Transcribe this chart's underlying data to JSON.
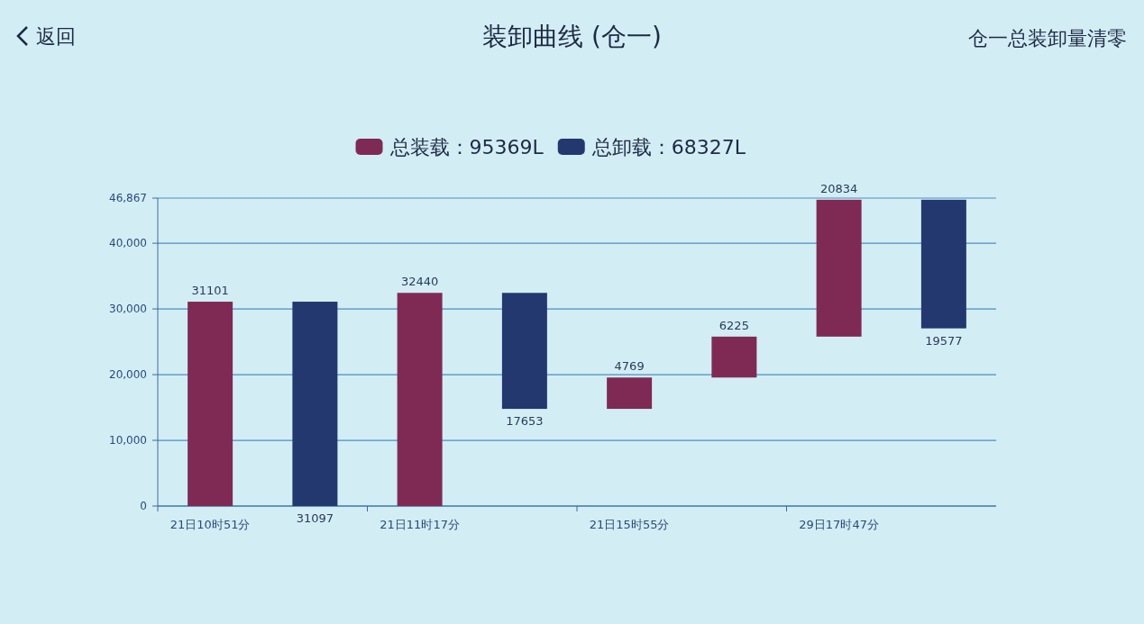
{
  "chart_data": {
    "type": "bar",
    "title": "装卸曲线 (仓一)",
    "annotations": [
      "返回",
      "仓一总装卸量清零"
    ],
    "categories": [
      "21日10时51分",
      null,
      "21日11时17分",
      null,
      "21日15时55分",
      null,
      "29日17时47分",
      null
    ],
    "series": [
      {
        "name": "总装载：95369L",
        "color": "#7e2a55",
        "values": [
          31101,
          null,
          32440,
          null,
          4769,
          6225,
          20834,
          null
        ],
        "base": [
          0,
          null,
          4,
          null,
          14791,
          19560,
          25785,
          null
        ]
      },
      {
        "name": "总卸载：68327L",
        "color": "#22386f",
        "values": [
          null,
          31097,
          null,
          17653,
          null,
          null,
          null,
          19577
        ],
        "base": [
          null,
          4,
          null,
          14791,
          null,
          null,
          null,
          27042
        ]
      }
    ],
    "ylim": [
      0,
      46867
    ],
    "yticks": [
      0,
      {
        "value": 10000,
        "label": "10,000"
      },
      {
        "value": 20000,
        "label": "20,000"
      },
      {
        "value": 30000,
        "label": "30,000"
      },
      {
        "value": 40000,
        "label": "40,000"
      },
      {
        "value": 46867,
        "label": "46,867"
      }
    ],
    "grid": "y",
    "legend": "top",
    "data_labels": true
  }
}
